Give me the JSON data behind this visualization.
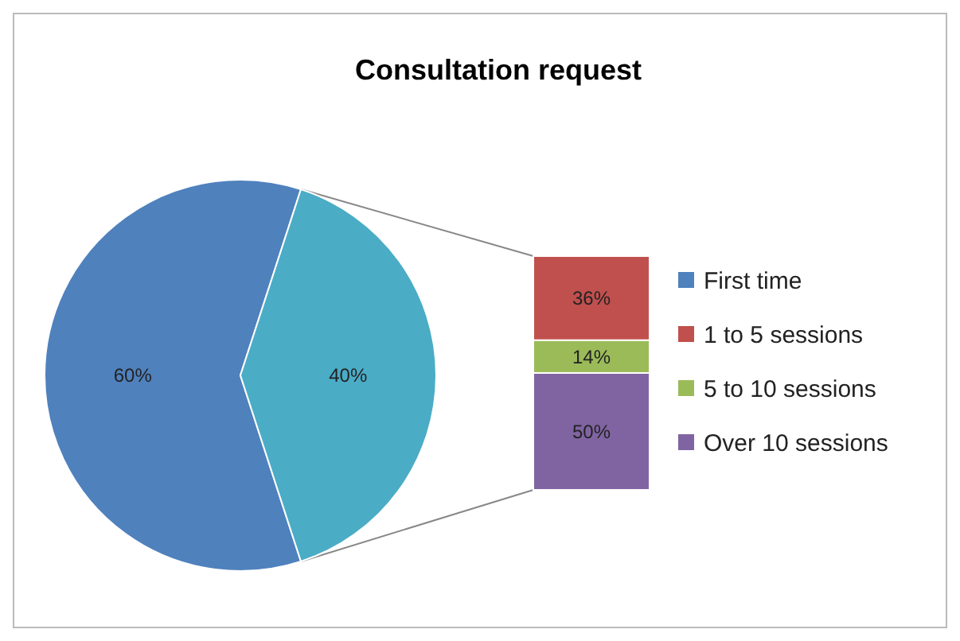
{
  "chart_data": [
    {
      "type": "pie",
      "title": "Consultation request",
      "categories": [
        "First time",
        null
      ],
      "values": [
        60,
        40
      ],
      "colors": [
        "#4f81bd",
        "#4bacc6"
      ],
      "value_labels": [
        "60%",
        "40%"
      ],
      "legend": "right"
    },
    {
      "type": "bar",
      "stacked": true,
      "categories": [
        null
      ],
      "legend": "right",
      "series": [
        {
          "name": "1 to 5 sessions",
          "color": "#c0504d",
          "values": [
            36
          ],
          "value_labels": [
            "36%"
          ]
        },
        {
          "name": "5 to 10 sessions",
          "color": "#9bbb59",
          "values": [
            14
          ],
          "value_labels": [
            "14%"
          ]
        },
        {
          "name": "Over 10 sessions",
          "color": "#8064a2",
          "values": [
            50
          ],
          "value_labels": [
            "50%"
          ]
        }
      ]
    }
  ]
}
